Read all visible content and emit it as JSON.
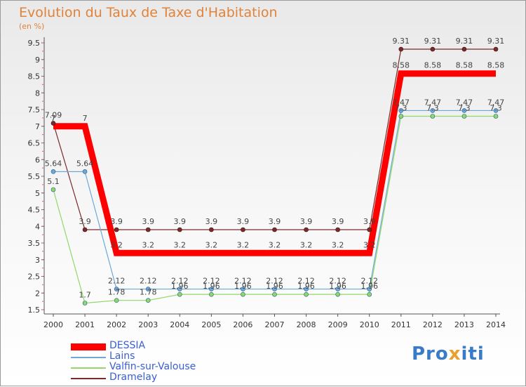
{
  "chart_data": {
    "type": "line",
    "title": "Evolution du Taux de Taxe d'Habitation",
    "subtitle": "(en %)",
    "x": [
      "2000",
      "2001",
      "2002",
      "2003",
      "2004",
      "2005",
      "2006",
      "2007",
      "2008",
      "2009",
      "2010",
      "2011",
      "2012",
      "2013",
      "2014"
    ],
    "yticks": [
      "1.5",
      "2",
      "2.5",
      "3",
      "3.5",
      "4",
      "4.5",
      "5",
      "5.5",
      "6",
      "6.5",
      "7",
      "7.5",
      "8",
      "8.5",
      "9",
      "9.5"
    ],
    "ylim": [
      1.5,
      9.5
    ],
    "grid": false,
    "legend_position": "bottom-left",
    "series": [
      {
        "name": "DESSIA",
        "color": "#ff0000",
        "values": [
          7,
          7,
          3.2,
          3.2,
          3.2,
          3.2,
          3.2,
          3.2,
          3.2,
          3.2,
          3.2,
          8.58,
          8.58,
          8.58,
          8.58
        ],
        "labels": [
          "7",
          "7",
          "3.2",
          "3.2",
          "3.2",
          "3.2",
          "3.2",
          "3.2",
          "3.2",
          "3.2",
          "3.2",
          "8.58",
          "8.58",
          "8.58",
          "8.58"
        ]
      },
      {
        "name": "Lains",
        "color": "#6fa8d6",
        "values": [
          5.64,
          5.64,
          2.12,
          2.12,
          2.12,
          2.12,
          2.12,
          2.12,
          2.12,
          2.12,
          2.12,
          7.47,
          7.47,
          7.47,
          7.47
        ],
        "labels": [
          "5.64",
          "5.64",
          "2.12",
          "2.12",
          "2.12",
          "2.12",
          "2.12",
          "2.12",
          "2.12",
          "2.12",
          "2.12",
          "7.47",
          "7.47",
          "7.47",
          "7.47"
        ]
      },
      {
        "name": "Valfin-sur-Valouse",
        "color": "#8fd86a",
        "values": [
          5.1,
          1.7,
          1.78,
          1.78,
          1.96,
          1.96,
          1.96,
          1.96,
          1.96,
          1.96,
          1.96,
          7.3,
          7.3,
          7.3,
          7.3
        ],
        "labels": [
          "5.1",
          "1.7",
          "1.78",
          "1.78",
          "1.96",
          "1.96",
          "1.96",
          "1.96",
          "1.96",
          "1.96",
          "1.96",
          "7.3",
          "7.3",
          "7.3",
          "7.3"
        ]
      },
      {
        "name": "Dramelay",
        "color": "#7a2a2a",
        "values": [
          7.09,
          3.9,
          3.9,
          3.9,
          3.9,
          3.9,
          3.9,
          3.9,
          3.9,
          3.9,
          3.9,
          9.31,
          9.31,
          9.31,
          9.31
        ],
        "labels": [
          "7.09",
          "3.9",
          "3.9",
          "3.9",
          "3.9",
          "3.9",
          "3.9",
          "3.9",
          "3.9",
          "3.9",
          "3.9",
          "9.31",
          "9.31",
          "9.31",
          "9.31"
        ]
      }
    ]
  },
  "logo": {
    "part1": "Pro",
    "part2": "x",
    "part3": "iti"
  }
}
